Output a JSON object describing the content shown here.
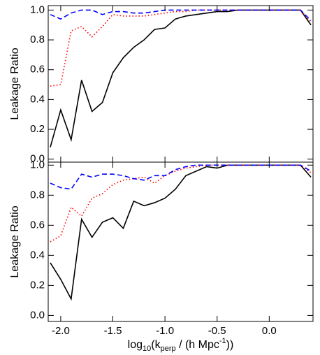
{
  "chart_data": [
    {
      "type": "line",
      "ylabel": "Leakage Ratio",
      "x": [
        -2.1,
        -2.0,
        -1.9,
        -1.8,
        -1.7,
        -1.6,
        -1.5,
        -1.4,
        -1.3,
        -1.2,
        -1.1,
        -1.0,
        -0.9,
        -0.8,
        -0.7,
        -0.6,
        -0.5,
        -0.4,
        -0.3,
        -0.2,
        -0.1,
        0.0,
        0.1,
        0.2,
        0.3,
        0.4
      ],
      "xlim": [
        -2.12,
        0.42
      ],
      "ylim": [
        -0.02,
        1.03
      ],
      "yticks": [
        {
          "value": 0,
          "label": "0.0"
        },
        0.2,
        0.4,
        0.6,
        0.8,
        {
          "value": 1,
          "label": "1.0"
        }
      ],
      "series": [
        {
          "color": "#000000",
          "dash": "solid",
          "values": [
            0.08,
            0.33,
            0.13,
            0.53,
            0.32,
            0.38,
            0.58,
            0.68,
            0.75,
            0.8,
            0.87,
            0.88,
            0.94,
            0.96,
            0.97,
            0.98,
            0.99,
            0.99,
            1.0,
            1.0,
            1.0,
            1.0,
            1.0,
            1.0,
            1.0,
            0.9
          ]
        },
        {
          "color": "#ff0000",
          "dash": "dotted",
          "values": [
            0.49,
            0.5,
            0.86,
            0.89,
            0.82,
            0.89,
            0.97,
            0.96,
            0.96,
            0.96,
            0.97,
            0.98,
            0.99,
            0.99,
            1.0,
            1.0,
            1.0,
            1.0,
            1.0,
            1.0,
            1.0,
            1.0,
            1.0,
            1.0,
            1.0,
            0.92
          ]
        },
        {
          "color": "#0000ff",
          "dash": "dashed",
          "values": [
            0.97,
            0.94,
            0.98,
            1.0,
            1.0,
            0.97,
            0.99,
            0.99,
            0.98,
            0.98,
            0.99,
            1.0,
            1.0,
            1.0,
            1.0,
            1.0,
            1.0,
            1.0,
            1.0,
            1.0,
            1.0,
            1.0,
            1.0,
            1.0,
            1.0,
            0.93
          ]
        }
      ]
    },
    {
      "type": "line",
      "ylabel": "Leakage Ratio",
      "xlabel": [
        "log",
        "10",
        "(k",
        "perp",
        " / (h Mpc",
        "-1",
        "))"
      ],
      "x": [
        -2.1,
        -2.0,
        -1.9,
        -1.8,
        -1.7,
        -1.6,
        -1.5,
        -1.4,
        -1.3,
        -1.2,
        -1.1,
        -1.0,
        -0.9,
        -0.8,
        -0.7,
        -0.6,
        -0.5,
        -0.4,
        -0.3,
        -0.2,
        -0.1,
        0.0,
        0.1,
        0.2,
        0.3,
        0.4
      ],
      "xlim": [
        -2.12,
        0.42
      ],
      "ylim": [
        -0.04,
        1.02
      ],
      "xticks": [
        {
          "value": -2,
          "label": "-2.0"
        },
        -1.5,
        {
          "value": -1,
          "label": "-1.0"
        },
        -0.5,
        {
          "value": 0,
          "label": "0.0"
        }
      ],
      "yticks": [
        {
          "value": 0,
          "label": "0.0"
        },
        0.2,
        0.4,
        0.6,
        0.8,
        {
          "value": 1,
          "label": "1.0"
        }
      ],
      "series": [
        {
          "color": "#000000",
          "dash": "solid",
          "values": [
            0.35,
            0.24,
            0.11,
            0.64,
            0.52,
            0.62,
            0.65,
            0.58,
            0.76,
            0.73,
            0.75,
            0.78,
            0.84,
            0.93,
            0.96,
            0.99,
            0.98,
            1.0,
            1.0,
            1.0,
            1.0,
            1.0,
            1.0,
            1.0,
            1.0,
            0.92
          ]
        },
        {
          "color": "#ff0000",
          "dash": "dotted",
          "values": [
            0.49,
            0.53,
            0.72,
            0.66,
            0.78,
            0.81,
            0.87,
            0.9,
            0.91,
            0.92,
            0.88,
            0.93,
            0.96,
            0.98,
            0.99,
            1.0,
            1.0,
            1.0,
            1.0,
            1.0,
            1.0,
            1.0,
            1.0,
            1.0,
            1.0,
            0.95
          ]
        },
        {
          "color": "#0000ff",
          "dash": "dashed",
          "values": [
            0.88,
            0.85,
            0.84,
            0.94,
            0.92,
            0.94,
            0.94,
            0.93,
            0.91,
            0.9,
            0.93,
            0.93,
            0.97,
            0.99,
            1.0,
            1.0,
            1.0,
            1.0,
            1.0,
            1.0,
            1.0,
            1.0,
            1.0,
            1.0,
            1.0,
            0.96
          ]
        }
      ]
    }
  ]
}
